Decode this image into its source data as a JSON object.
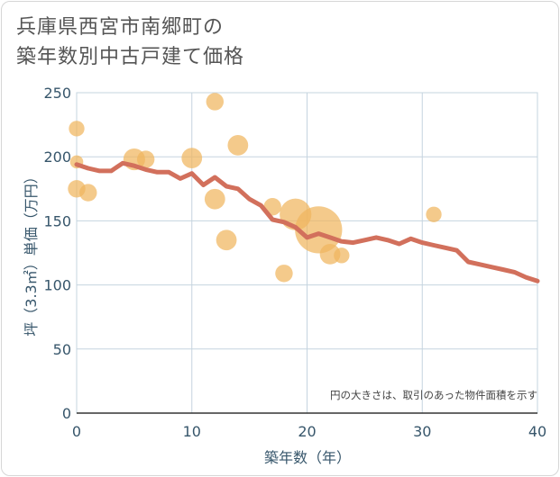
{
  "title": {
    "line1": "兵庫県西宮市南郷町の",
    "line2": "築年数別中古戸建て価格"
  },
  "chart_data": {
    "type": "scatter",
    "xlabel": "築年数（年）",
    "ylabel": "坪（3.3㎡）単価（万円）",
    "xlim": [
      0,
      40
    ],
    "ylim": [
      0,
      250
    ],
    "x_ticks": [
      0,
      10,
      20,
      30,
      40
    ],
    "y_ticks": [
      0,
      50,
      100,
      150,
      200,
      250
    ],
    "grid": true,
    "annotation": "円の大きさは、取引のあった物件面積を示す",
    "colors": {
      "bubble": "#f0b65e",
      "line": "#d2705c",
      "grid": "#c5d4df",
      "axis_text": "#37566b"
    },
    "scatter_points": [
      {
        "x": 0,
        "y": 222,
        "size": 2
      },
      {
        "x": 0,
        "y": 196,
        "size": 1
      },
      {
        "x": 0,
        "y": 175,
        "size": 3
      },
      {
        "x": 1,
        "y": 172,
        "size": 3
      },
      {
        "x": 5,
        "y": 198,
        "size": 6
      },
      {
        "x": 6,
        "y": 198,
        "size": 3
      },
      {
        "x": 10,
        "y": 199,
        "size": 5
      },
      {
        "x": 12,
        "y": 243,
        "size": 3
      },
      {
        "x": 12,
        "y": 167,
        "size": 5
      },
      {
        "x": 13,
        "y": 135,
        "size": 5
      },
      {
        "x": 14,
        "y": 209,
        "size": 5
      },
      {
        "x": 17,
        "y": 161,
        "size": 3
      },
      {
        "x": 18,
        "y": 109,
        "size": 3
      },
      {
        "x": 19,
        "y": 155,
        "size": 17
      },
      {
        "x": 21,
        "y": 143,
        "size": 45
      },
      {
        "x": 22,
        "y": 124,
        "size": 5
      },
      {
        "x": 23,
        "y": 123,
        "size": 2
      },
      {
        "x": 31,
        "y": 155,
        "size": 2
      }
    ],
    "trend_line": {
      "x": [
        0,
        1,
        2,
        3,
        4,
        5,
        6,
        7,
        8,
        9,
        10,
        11,
        12,
        13,
        14,
        15,
        16,
        17,
        18,
        19,
        20,
        21,
        22,
        23,
        24,
        25,
        26,
        27,
        28,
        29,
        30,
        31,
        32,
        33,
        34,
        35,
        36,
        37,
        38,
        39,
        40
      ],
      "y": [
        194,
        191,
        189,
        189,
        195,
        193,
        190,
        188,
        188,
        183,
        187,
        178,
        184,
        177,
        175,
        167,
        162,
        151,
        149,
        145,
        137,
        140,
        137,
        134,
        133,
        135,
        137,
        135,
        132,
        136,
        133,
        131,
        129,
        127,
        118,
        116,
        114,
        112,
        110,
        106,
        103
      ]
    }
  }
}
